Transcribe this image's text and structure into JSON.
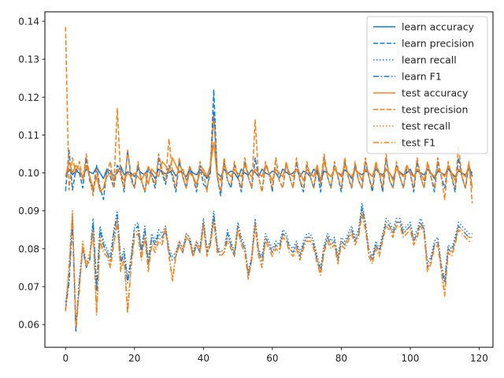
{
  "chart_data": {
    "type": "line",
    "title": "",
    "xlabel": "",
    "ylabel": "",
    "xlim": [
      -6,
      124
    ],
    "ylim": [
      0.054,
      0.1425
    ],
    "xticks": [
      0,
      20,
      40,
      60,
      80,
      100,
      120
    ],
    "yticks": [
      0.06,
      0.07,
      0.08,
      0.09,
      0.1,
      0.11,
      0.12,
      0.13,
      0.14
    ],
    "ytick_labels": [
      "0.06",
      "0.07",
      "0.08",
      "0.09",
      "0.10",
      "0.11",
      "0.12",
      "0.13",
      "0.14"
    ],
    "grid": false,
    "legend_position": "top-right",
    "x": [
      0,
      1,
      2,
      3,
      4,
      5,
      6,
      7,
      8,
      9,
      10,
      11,
      12,
      13,
      14,
      15,
      16,
      17,
      18,
      19,
      20,
      21,
      22,
      23,
      24,
      25,
      26,
      27,
      28,
      29,
      30,
      31,
      32,
      33,
      34,
      35,
      36,
      37,
      38,
      39,
      40,
      41,
      42,
      43,
      44,
      45,
      46,
      47,
      48,
      49,
      50,
      51,
      52,
      53,
      54,
      55,
      56,
      57,
      58,
      59,
      60,
      61,
      62,
      63,
      64,
      65,
      66,
      67,
      68,
      69,
      70,
      71,
      72,
      73,
      74,
      75,
      76,
      77,
      78,
      79,
      80,
      81,
      82,
      83,
      84,
      85,
      86,
      87,
      88,
      89,
      90,
      91,
      92,
      93,
      94,
      95,
      96,
      97,
      98,
      99,
      100,
      101,
      102,
      103,
      104,
      105,
      106,
      107,
      108,
      109,
      110,
      111,
      112,
      113,
      114,
      115,
      116,
      117,
      118
    ],
    "series": [
      {
        "name": "learn accuracy",
        "color": "#0a7ddf",
        "dash": "solid",
        "values": [
          0.099,
          0.101,
          0.0995,
          0.1005,
          0.1,
          0.099,
          0.101,
          0.1002,
          0.0998,
          0.1015,
          0.1,
          0.0985,
          0.101,
          0.1005,
          0.0992,
          0.1,
          0.1018,
          0.0995,
          0.1003,
          0.1,
          0.099,
          0.101,
          0.1,
          0.0995,
          0.1012,
          0.1,
          0.0985,
          0.101,
          0.1002,
          0.0998,
          0.1,
          0.1008,
          0.0992,
          0.1005,
          0.1,
          0.099,
          0.101,
          0.1,
          0.0995,
          0.101,
          0.1,
          0.0985,
          0.1003,
          0.116,
          0.1,
          0.099,
          0.101,
          0.0998,
          0.1005,
          0.1,
          0.0985,
          0.101,
          0.1,
          0.0995,
          0.1008,
          0.1002,
          0.099,
          0.101,
          0.1,
          0.0995,
          0.1005,
          0.1,
          0.0985,
          0.101,
          0.1002,
          0.0995,
          0.1,
          0.101,
          0.099,
          0.1005,
          0.1,
          0.099,
          0.101,
          0.1,
          0.0978,
          0.1005,
          0.1,
          0.099,
          0.101,
          0.1,
          0.0995,
          0.1008,
          0.1,
          0.0985,
          0.101,
          0.1,
          0.0995,
          0.1005,
          0.1,
          0.099,
          0.101,
          0.1,
          0.0995,
          0.1008,
          0.1,
          0.0985,
          0.101,
          0.1002,
          0.0995,
          0.1,
          0.101,
          0.099,
          0.1005,
          0.1,
          0.0995,
          0.101,
          0.1,
          0.0985,
          0.1005,
          0.1,
          0.0995,
          0.101,
          0.1,
          0.099,
          0.1005,
          0.1,
          0.0995,
          0.101,
          0.1
        ]
      },
      {
        "name": "learn precision",
        "color": "#0a7ddf",
        "dash": "dashed",
        "values": [
          0.0952,
          0.106,
          0.0955,
          0.101,
          0.1,
          0.096,
          0.104,
          0.098,
          0.095,
          0.102,
          0.096,
          0.093,
          0.101,
          0.099,
          0.096,
          0.102,
          0.101,
          0.095,
          0.106,
          0.099,
          0.096,
          0.102,
          0.098,
          0.095,
          0.101,
          0.099,
          0.096,
          0.104,
          0.1,
          0.097,
          0.102,
          0.099,
          0.095,
          0.103,
          0.099,
          0.096,
          0.101,
          0.099,
          0.095,
          0.102,
          0.097,
          0.096,
          0.1,
          0.122,
          0.099,
          0.094,
          0.103,
          0.098,
          0.096,
          0.102,
          0.099,
          0.095,
          0.103,
          0.099,
          0.096,
          0.104,
          0.099,
          0.095,
          0.102,
          0.1,
          0.095,
          0.104,
          0.098,
          0.096,
          0.102,
          0.099,
          0.096,
          0.103,
          0.098,
          0.095,
          0.102,
          0.099,
          0.096,
          0.101,
          0.095,
          0.104,
          0.099,
          0.096,
          0.102,
          0.099,
          0.095,
          0.103,
          0.099,
          0.096,
          0.102,
          0.098,
          0.096,
          0.103,
          0.099,
          0.095,
          0.102,
          0.1,
          0.095,
          0.104,
          0.098,
          0.096,
          0.102,
          0.099,
          0.096,
          0.101,
          0.1,
          0.095,
          0.103,
          0.099,
          0.096,
          0.102,
          0.099,
          0.095,
          0.103,
          0.099,
          0.096,
          0.102,
          0.099,
          0.095,
          0.104,
          0.099,
          0.096,
          0.102,
          0.099
        ]
      },
      {
        "name": "learn recall",
        "color": "#0a7ddf",
        "dash": "dotted",
        "values": [
          0.066,
          0.072,
          0.088,
          0.059,
          0.072,
          0.081,
          0.076,
          0.078,
          0.088,
          0.07,
          0.086,
          0.082,
          0.08,
          0.078,
          0.085,
          0.09,
          0.077,
          0.08,
          0.072,
          0.078,
          0.086,
          0.087,
          0.08,
          0.086,
          0.077,
          0.084,
          0.082,
          0.085,
          0.084,
          0.086,
          0.08,
          0.078,
          0.079,
          0.082,
          0.08,
          0.084,
          0.083,
          0.079,
          0.082,
          0.08,
          0.088,
          0.08,
          0.082,
          0.09,
          0.081,
          0.079,
          0.08,
          0.085,
          0.082,
          0.079,
          0.087,
          0.083,
          0.081,
          0.074,
          0.078,
          0.088,
          0.08,
          0.078,
          0.084,
          0.082,
          0.08,
          0.082,
          0.081,
          0.085,
          0.084,
          0.081,
          0.08,
          0.082,
          0.079,
          0.082,
          0.084,
          0.084,
          0.082,
          0.078,
          0.075,
          0.081,
          0.084,
          0.082,
          0.083,
          0.078,
          0.083,
          0.082,
          0.084,
          0.086,
          0.083,
          0.085,
          0.092,
          0.087,
          0.08,
          0.078,
          0.082,
          0.08,
          0.084,
          0.088,
          0.087,
          0.085,
          0.088,
          0.088,
          0.085,
          0.086,
          0.087,
          0.083,
          0.085,
          0.088,
          0.086,
          0.076,
          0.078,
          0.082,
          0.083,
          0.076,
          0.072,
          0.081,
          0.08,
          0.083,
          0.087,
          0.086,
          0.085,
          0.084,
          0.084
        ]
      },
      {
        "name": "learn F1",
        "color": "#0a7ddf",
        "dash": "dashdot",
        "values": [
          0.064,
          0.071,
          0.087,
          0.058,
          0.071,
          0.08,
          0.075,
          0.077,
          0.087,
          0.069,
          0.085,
          0.081,
          0.079,
          0.077,
          0.084,
          0.089,
          0.076,
          0.079,
          0.071,
          0.077,
          0.085,
          0.086,
          0.079,
          0.085,
          0.076,
          0.083,
          0.081,
          0.084,
          0.083,
          0.085,
          0.079,
          0.077,
          0.078,
          0.081,
          0.079,
          0.083,
          0.082,
          0.078,
          0.081,
          0.079,
          0.087,
          0.079,
          0.081,
          0.089,
          0.08,
          0.078,
          0.079,
          0.084,
          0.081,
          0.078,
          0.086,
          0.082,
          0.08,
          0.073,
          0.077,
          0.087,
          0.079,
          0.077,
          0.083,
          0.081,
          0.079,
          0.081,
          0.08,
          0.084,
          0.083,
          0.08,
          0.079,
          0.081,
          0.078,
          0.081,
          0.083,
          0.083,
          0.081,
          0.077,
          0.074,
          0.08,
          0.083,
          0.081,
          0.082,
          0.077,
          0.082,
          0.081,
          0.083,
          0.085,
          0.082,
          0.084,
          0.091,
          0.086,
          0.079,
          0.077,
          0.081,
          0.079,
          0.083,
          0.087,
          0.086,
          0.084,
          0.087,
          0.087,
          0.084,
          0.085,
          0.086,
          0.082,
          0.084,
          0.087,
          0.085,
          0.075,
          0.077,
          0.081,
          0.082,
          0.075,
          0.071,
          0.08,
          0.079,
          0.082,
          0.086,
          0.085,
          0.084,
          0.083,
          0.083
        ]
      },
      {
        "name": "test accuracy",
        "color": "#ff7f0e",
        "dash": "solid",
        "values": [
          0.099,
          0.103,
          0.1,
          0.102,
          0.101,
          0.0985,
          0.102,
          0.099,
          0.096,
          0.099,
          0.095,
          0.096,
          0.099,
          0.1,
          0.098,
          0.101,
          0.1,
          0.098,
          0.1,
          0.099,
          0.1,
          0.099,
          0.098,
          0.1,
          0.097,
          0.101,
          0.1,
          0.099,
          0.103,
          0.102,
          0.1,
          0.104,
          0.102,
          0.1,
          0.101,
          0.098,
          0.1,
          0.099,
          0.097,
          0.1,
          0.101,
          0.099,
          0.102,
          0.108,
          0.099,
          0.098,
          0.102,
          0.1,
          0.099,
          0.101,
          0.1,
          0.099,
          0.102,
          0.1,
          0.099,
          0.101,
          0.1,
          0.099,
          0.102,
          0.1,
          0.098,
          0.101,
          0.1,
          0.099,
          0.102,
          0.1,
          0.099,
          0.101,
          0.1,
          0.098,
          0.101,
          0.1,
          0.099,
          0.102,
          0.098,
          0.103,
          0.1,
          0.099,
          0.101,
          0.1,
          0.099,
          0.102,
          0.1,
          0.099,
          0.101,
          0.1,
          0.098,
          0.101,
          0.1,
          0.099,
          0.102,
          0.1,
          0.099,
          0.101,
          0.1,
          0.098,
          0.101,
          0.1,
          0.099,
          0.102,
          0.1,
          0.099,
          0.101,
          0.1,
          0.098,
          0.102,
          0.1,
          0.099,
          0.101,
          0.1,
          0.099,
          0.102,
          0.1,
          0.098,
          0.101,
          0.1,
          0.099,
          0.102,
          0.096
        ]
      },
      {
        "name": "test precision",
        "color": "#ff7f0e",
        "dash": "dashed",
        "values": [
          0.1385,
          0.0955,
          0.104,
          0.1,
          0.103,
          0.098,
          0.105,
          0.099,
          0.094,
          0.101,
          0.095,
          0.096,
          0.1,
          0.103,
          0.096,
          0.117,
          0.099,
          0.096,
          0.106,
          0.098,
          0.096,
          0.103,
          0.098,
          0.095,
          0.102,
          0.099,
          0.097,
          0.105,
          0.101,
          0.098,
          0.109,
          0.1,
          0.096,
          0.104,
          0.099,
          0.096,
          0.102,
          0.099,
          0.096,
          0.103,
          0.1,
          0.095,
          0.102,
          0.115,
          0.099,
          0.095,
          0.104,
          0.098,
          0.097,
          0.103,
          0.099,
          0.096,
          0.104,
          0.099,
          0.096,
          0.114,
          0.099,
          0.095,
          0.103,
          0.1,
          0.096,
          0.104,
          0.098,
          0.096,
          0.103,
          0.099,
          0.096,
          0.104,
          0.098,
          0.096,
          0.103,
          0.099,
          0.096,
          0.102,
          0.097,
          0.105,
          0.099,
          0.096,
          0.103,
          0.099,
          0.096,
          0.104,
          0.099,
          0.096,
          0.103,
          0.098,
          0.096,
          0.104,
          0.099,
          0.096,
          0.103,
          0.1,
          0.096,
          0.105,
          0.098,
          0.096,
          0.103,
          0.099,
          0.096,
          0.102,
          0.1,
          0.096,
          0.104,
          0.099,
          0.096,
          0.103,
          0.099,
          0.096,
          0.104,
          0.099,
          0.093,
          0.103,
          0.099,
          0.096,
          0.107,
          0.099,
          0.096,
          0.103,
          0.092
        ]
      },
      {
        "name": "test recall",
        "color": "#ff7f0e",
        "dash": "dotted",
        "values": [
          0.064,
          0.076,
          0.09,
          0.06,
          0.07,
          0.082,
          0.076,
          0.079,
          0.085,
          0.063,
          0.083,
          0.08,
          0.079,
          0.076,
          0.082,
          0.088,
          0.075,
          0.078,
          0.064,
          0.076,
          0.084,
          0.085,
          0.078,
          0.084,
          0.075,
          0.082,
          0.08,
          0.083,
          0.082,
          0.086,
          0.079,
          0.072,
          0.079,
          0.082,
          0.08,
          0.084,
          0.083,
          0.079,
          0.082,
          0.08,
          0.087,
          0.079,
          0.082,
          0.088,
          0.08,
          0.079,
          0.08,
          0.083,
          0.081,
          0.079,
          0.086,
          0.082,
          0.08,
          0.073,
          0.078,
          0.087,
          0.079,
          0.076,
          0.083,
          0.081,
          0.079,
          0.081,
          0.08,
          0.084,
          0.083,
          0.08,
          0.079,
          0.081,
          0.078,
          0.081,
          0.083,
          0.083,
          0.081,
          0.077,
          0.074,
          0.08,
          0.083,
          0.081,
          0.082,
          0.077,
          0.082,
          0.081,
          0.083,
          0.085,
          0.082,
          0.084,
          0.09,
          0.086,
          0.079,
          0.077,
          0.081,
          0.079,
          0.083,
          0.087,
          0.086,
          0.084,
          0.087,
          0.087,
          0.084,
          0.085,
          0.086,
          0.082,
          0.084,
          0.087,
          0.085,
          0.075,
          0.077,
          0.081,
          0.082,
          0.075,
          0.068,
          0.08,
          0.079,
          0.082,
          0.086,
          0.085,
          0.084,
          0.083,
          0.083
        ]
      },
      {
        "name": "test F1",
        "color": "#ff7f0e",
        "dash": "dashdot",
        "values": [
          0.0635,
          0.075,
          0.089,
          0.059,
          0.069,
          0.081,
          0.075,
          0.078,
          0.084,
          0.0625,
          0.082,
          0.079,
          0.078,
          0.075,
          0.081,
          0.087,
          0.074,
          0.077,
          0.063,
          0.075,
          0.083,
          0.084,
          0.077,
          0.083,
          0.074,
          0.081,
          0.079,
          0.082,
          0.081,
          0.085,
          0.078,
          0.0715,
          0.078,
          0.081,
          0.079,
          0.083,
          0.082,
          0.078,
          0.081,
          0.079,
          0.086,
          0.078,
          0.081,
          0.087,
          0.079,
          0.078,
          0.079,
          0.082,
          0.08,
          0.078,
          0.085,
          0.081,
          0.079,
          0.072,
          0.077,
          0.086,
          0.078,
          0.075,
          0.082,
          0.08,
          0.078,
          0.08,
          0.079,
          0.083,
          0.082,
          0.079,
          0.078,
          0.08,
          0.077,
          0.08,
          0.082,
          0.082,
          0.08,
          0.076,
          0.073,
          0.079,
          0.082,
          0.08,
          0.081,
          0.076,
          0.081,
          0.08,
          0.082,
          0.084,
          0.081,
          0.083,
          0.089,
          0.085,
          0.078,
          0.076,
          0.08,
          0.078,
          0.082,
          0.086,
          0.085,
          0.083,
          0.086,
          0.086,
          0.083,
          0.084,
          0.085,
          0.081,
          0.083,
          0.086,
          0.084,
          0.074,
          0.076,
          0.08,
          0.081,
          0.074,
          0.0675,
          0.079,
          0.078,
          0.081,
          0.085,
          0.084,
          0.083,
          0.082,
          0.082
        ]
      }
    ]
  }
}
